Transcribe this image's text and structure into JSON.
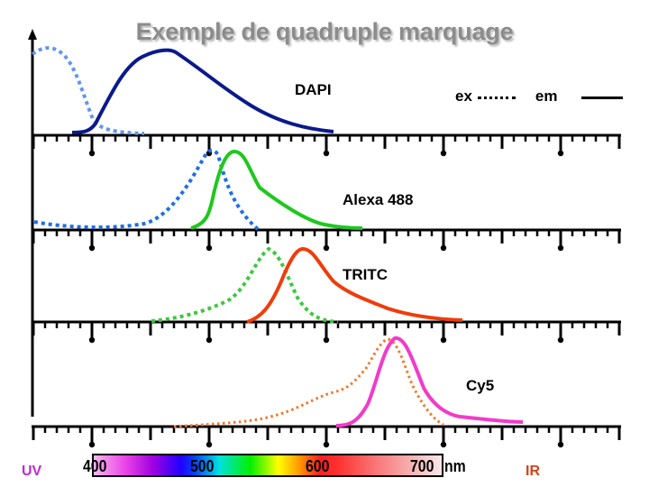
{
  "title": "Exemple de quadruple marquage",
  "legend": {
    "ex_label": "ex",
    "em_label": "em",
    "ex_style": "dotted",
    "em_style": "solid"
  },
  "labels": {
    "dapi": "DAPI",
    "alexa": "Alexa 488",
    "tritc": "TRITC",
    "cy5": "Cy5"
  },
  "spectrum": {
    "t400": "400",
    "t500": "500",
    "t600": "600",
    "t700": "700",
    "unit": "nm",
    "uv": "UV",
    "ir": "IR"
  },
  "colors": {
    "dapi_ex": "#6495ed",
    "dapi_em": "#0a1a8c",
    "alexa_ex": "#1e6fe6",
    "alexa_em": "#1ec81e",
    "tritc_ex": "#3cc83c",
    "tritc_em": "#f03c0a",
    "cy5_ex": "#f07828",
    "cy5_em": "#f03cc8",
    "title": "#8c8c8c",
    "uv": "#c02ad0",
    "ir": "#d0441c"
  },
  "chart_data": {
    "type": "line",
    "title": "Exemple de quadruple marquage",
    "xlabel": "nm",
    "ylabel": "",
    "x_range_nm": [
      350,
      850
    ],
    "x_ticks": [
      400,
      500,
      600,
      700
    ],
    "legend": [
      "ex (dotted)",
      "em (solid)"
    ],
    "series": [
      {
        "name": "DAPI ex",
        "style": "dotted",
        "color": "#6495ed",
        "peak_nm": 358,
        "x": [
          350,
          358,
          370,
          380,
          390,
          400,
          410,
          420,
          440
        ],
        "y": [
          0.9,
          1.0,
          0.92,
          0.7,
          0.45,
          0.2,
          0.08,
          0.03,
          0.0
        ]
      },
      {
        "name": "DAPI em",
        "style": "solid",
        "color": "#0a1a8c",
        "peak_nm": 461,
        "x": [
          385,
          400,
          410,
          420,
          440,
          461,
          480,
          520,
          560,
          610
        ],
        "y": [
          0.0,
          0.03,
          0.2,
          0.5,
          0.88,
          1.0,
          0.85,
          0.45,
          0.2,
          0.03
        ]
      },
      {
        "name": "Alexa 488 ex",
        "style": "dotted",
        "color": "#1e6fe6",
        "peak_nm": 495,
        "x": [
          350,
          400,
          440,
          470,
          485,
          495,
          505,
          515,
          530
        ],
        "y": [
          0.05,
          0.0,
          0.1,
          0.45,
          0.8,
          1.0,
          0.6,
          0.15,
          0.0
        ]
      },
      {
        "name": "Alexa 488 em",
        "style": "solid",
        "color": "#1ec81e",
        "peak_nm": 520,
        "x": [
          487,
          497,
          507,
          520,
          535,
          555,
          590,
          630,
          640
        ],
        "y": [
          0.0,
          0.1,
          0.75,
          1.0,
          0.8,
          0.45,
          0.15,
          0.03,
          0.0
        ]
      },
      {
        "name": "TRITC ex",
        "style": "dotted",
        "color": "#3cc83c",
        "peak_nm": 552,
        "x": [
          455,
          480,
          510,
          530,
          545,
          552,
          562,
          575,
          600
        ],
        "y": [
          0.0,
          0.05,
          0.25,
          0.5,
          0.85,
          1.0,
          0.6,
          0.2,
          0.0
        ]
      },
      {
        "name": "TRITC em",
        "style": "solid",
        "color": "#f03c0a",
        "peak_nm": 578,
        "x": [
          535,
          550,
          565,
          578,
          590,
          610,
          640,
          680,
          720
        ],
        "y": [
          0.0,
          0.15,
          0.7,
          1.0,
          0.85,
          0.45,
          0.25,
          0.08,
          0.02
        ]
      },
      {
        "name": "Cy5 ex",
        "style": "dotted",
        "color": "#f07828",
        "peak_nm": 649,
        "x": [
          470,
          520,
          570,
          610,
          630,
          649,
          660,
          680,
          700
        ],
        "y": [
          0.0,
          0.05,
          0.2,
          0.4,
          0.55,
          1.0,
          0.7,
          0.2,
          0.0
        ]
      },
      {
        "name": "Cy5 em",
        "style": "solid",
        "color": "#f03cc8",
        "peak_nm": 670,
        "x": [
          610,
          630,
          650,
          662,
          670,
          685,
          700,
          720,
          760
        ],
        "y": [
          0.0,
          0.05,
          0.4,
          0.95,
          1.0,
          0.6,
          0.2,
          0.08,
          0.02
        ]
      }
    ],
    "grid": false
  }
}
